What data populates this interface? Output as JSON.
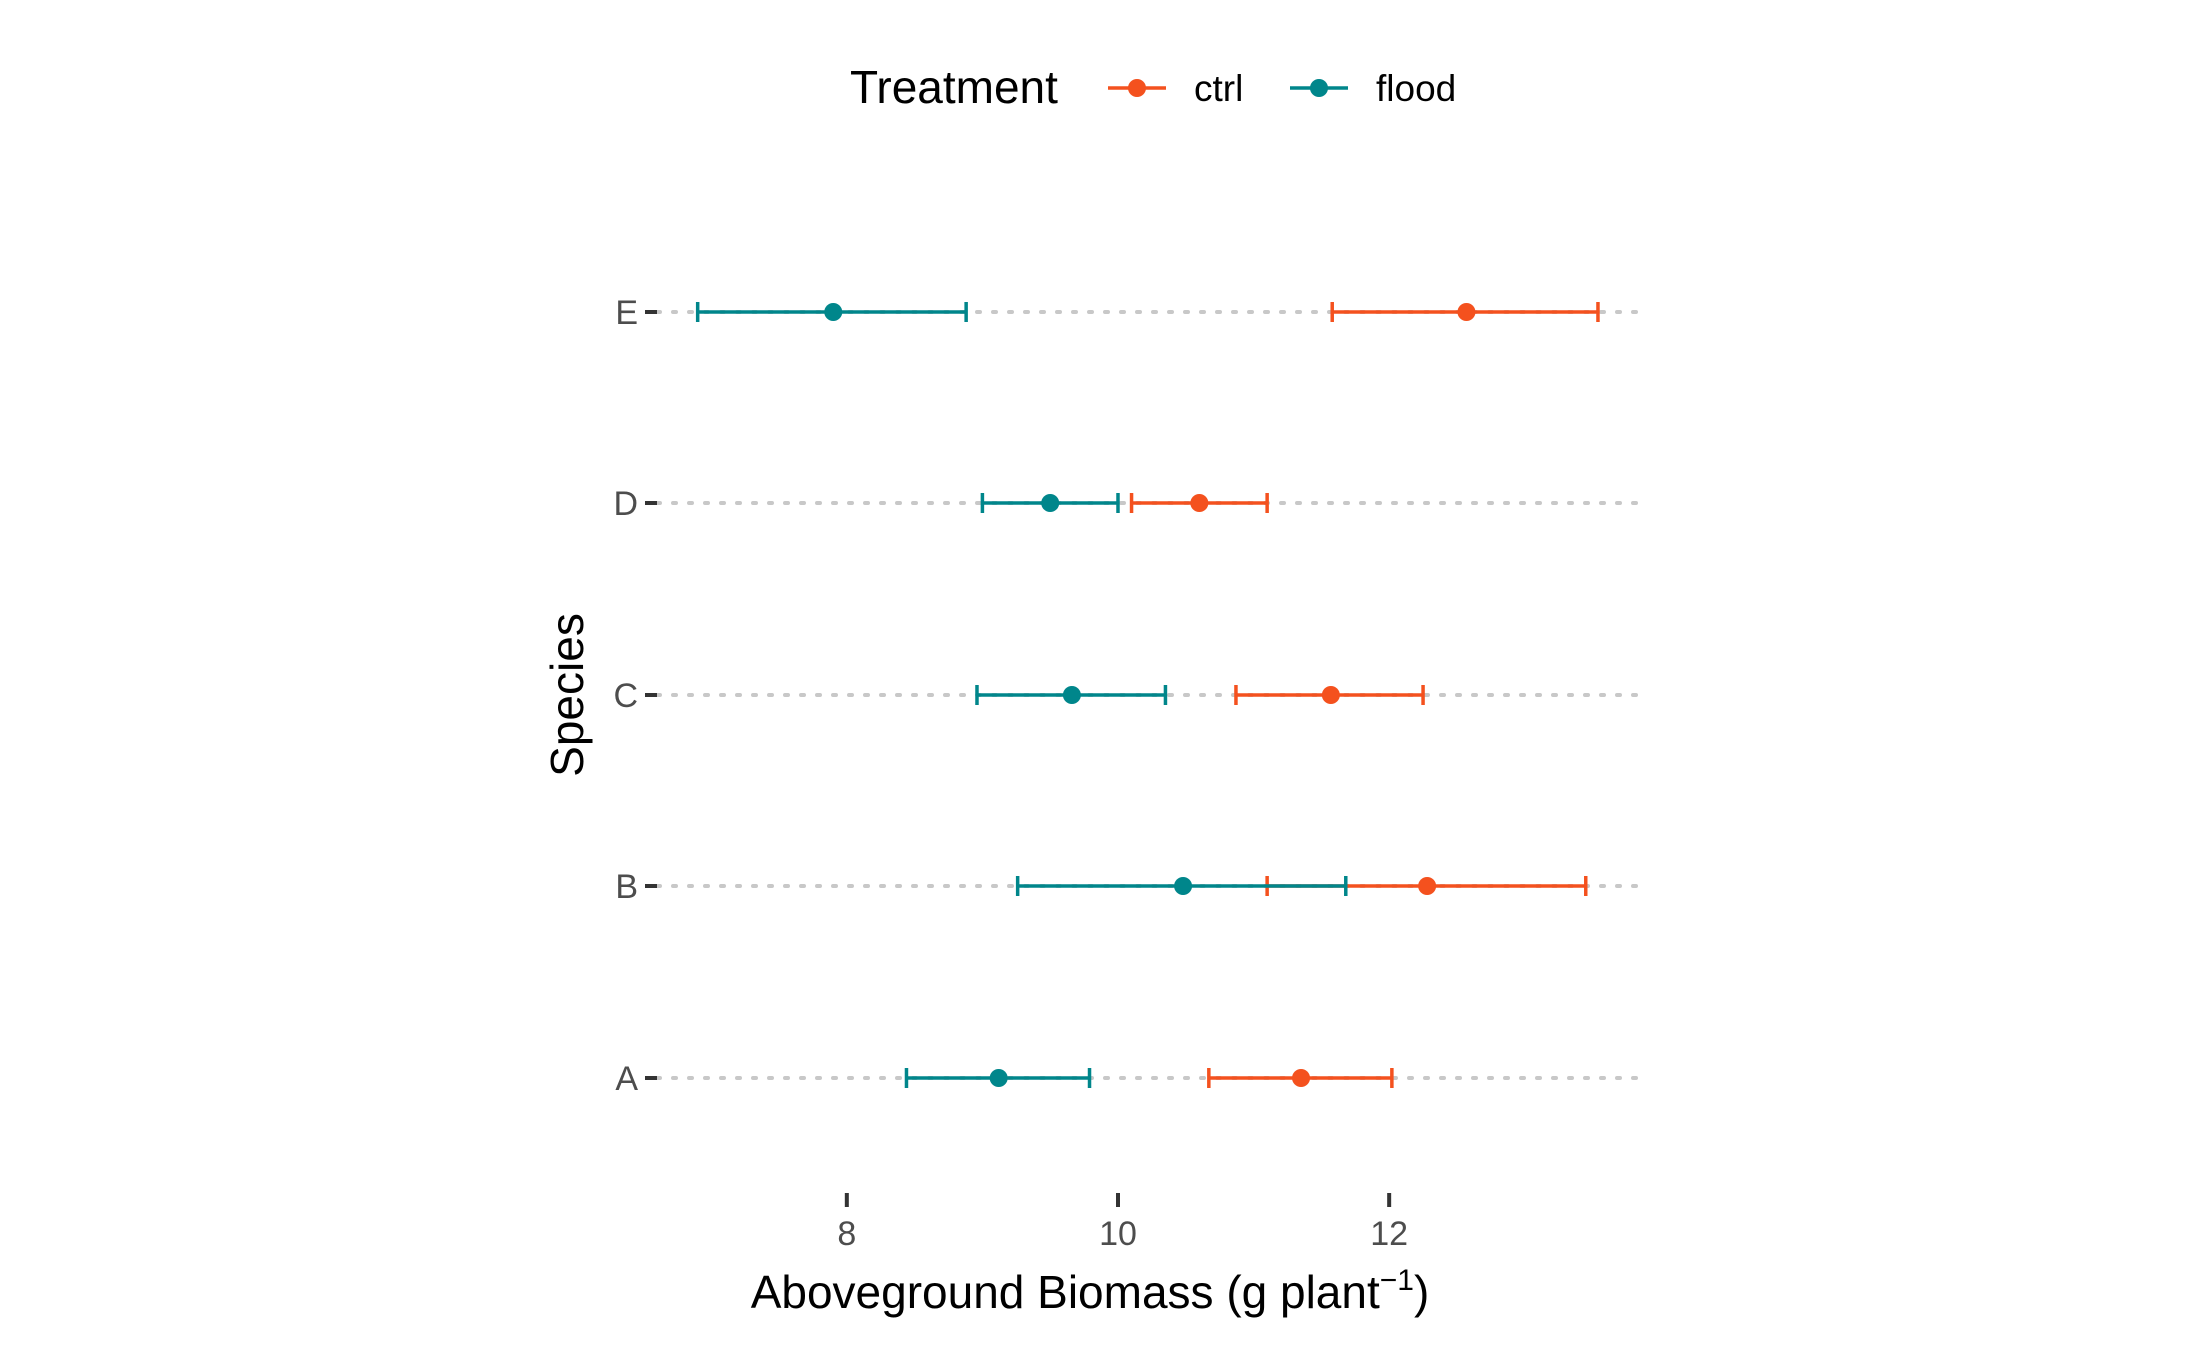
{
  "chart_data": {
    "type": "scatter",
    "subtype": "point-range",
    "title": "",
    "xlabel": "Aboveground Biomass (g plant",
    "xlabel_superscript": "−1",
    "xlabel_suffix": ")",
    "ylabel": "Species",
    "xlim": [
      6.6,
      13.85
    ],
    "x_ticks": [
      8,
      10,
      12
    ],
    "x_tick_labels": [
      "8",
      "10",
      "12"
    ],
    "categories": [
      "A",
      "B",
      "C",
      "D",
      "E"
    ],
    "grid": "horizontal-dotted",
    "legend": {
      "position": "top",
      "title": "Treatment"
    },
    "series": [
      {
        "name": "ctrl",
        "color": "#F4511E",
        "points": [
          {
            "category": "A",
            "mean": 11.35,
            "lower": 10.67,
            "upper": 12.02
          },
          {
            "category": "B",
            "mean": 12.28,
            "lower": 11.1,
            "upper": 13.45
          },
          {
            "category": "C",
            "mean": 11.57,
            "lower": 10.87,
            "upper": 12.25
          },
          {
            "category": "D",
            "mean": 10.6,
            "lower": 10.1,
            "upper": 11.1
          },
          {
            "category": "E",
            "mean": 12.57,
            "lower": 11.58,
            "upper": 13.54
          }
        ]
      },
      {
        "name": "flood",
        "color": "#00868B",
        "points": [
          {
            "category": "A",
            "mean": 9.12,
            "lower": 8.44,
            "upper": 9.79
          },
          {
            "category": "B",
            "mean": 10.48,
            "lower": 9.26,
            "upper": 11.68
          },
          {
            "category": "C",
            "mean": 9.66,
            "lower": 8.96,
            "upper": 10.35
          },
          {
            "category": "D",
            "mean": 9.5,
            "lower": 9.0,
            "upper": 10.0
          },
          {
            "category": "E",
            "mean": 7.9,
            "lower": 6.9,
            "upper": 8.88
          }
        ]
      }
    ]
  }
}
